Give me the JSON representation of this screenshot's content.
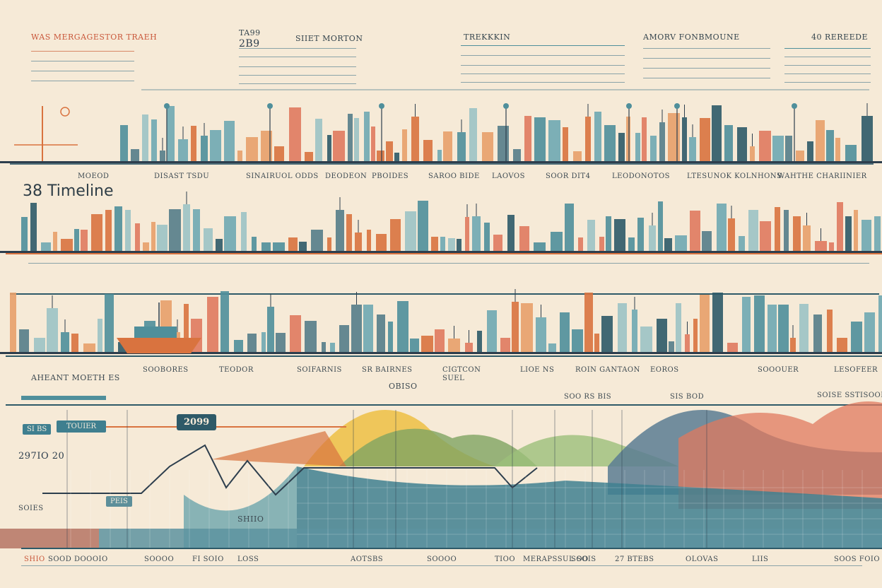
{
  "header": {
    "col1_title": "WAS MERGAGESTOR TRAEH",
    "col2_top": "TA99",
    "col2_big": "2B9",
    "col3_title": "SIIET MORTON",
    "col4_title": "TREKKKIN",
    "col5_title": "AMORV FONBMOUNE",
    "col6_title": "40 REREEDE"
  },
  "timeline_title": "38 Timeline",
  "row1_labels": [
    "MOEOD",
    "DISAST TSDU",
    "SINAIRUOL ODDS",
    "DEODEON",
    "PBOIDES",
    "SAROO BIDE",
    "LAOVOS",
    "SOOR DIT4",
    "LEODONOTOS",
    "LTESUNOK KOLNHONS",
    "WAHTHE CHARIINIER"
  ],
  "row3_labels": [
    "SOOBORES",
    "TEODOR",
    "SOIFARNIS",
    "SR BAIRNES",
    "CIGTCON SUEL",
    "LIOE NS",
    "ROIN GANTAON",
    "EOROS",
    "SOOOUER",
    "LESOFEER"
  ],
  "left_label": "AHEANT MOETH ES",
  "center_label": "OBISO",
  "chart_labels": {
    "box_small": "SI BS",
    "box_tourer": "TOUIER",
    "box_year": "2099",
    "left_value": "297IO 20",
    "right_top1": "SOO RS BIS",
    "right_top2": "SIS BOD",
    "right_top3": "SOISE SSTISOOE",
    "mid_label": "PEIS",
    "low_label": "SOIES",
    "inline_label": "SHIIO"
  },
  "footer_labels": [
    "SHIO",
    "SOOD DOOOIO",
    "SOOOO",
    "FI SOIO",
    "LOSS",
    "AOTSBS",
    "SOOOO",
    "TIOO",
    "MERAPSSUL SOIS",
    "SOO",
    "27 BTEBS",
    "OLOVAS",
    "LIIS",
    "SOOS FOIO"
  ],
  "colors": {
    "background": "#f6ead7",
    "teal": "#4f8f9b",
    "dark_teal": "#2e5a68",
    "orange": "#d9733f",
    "yellow": "#eec24d",
    "green": "#7fa461",
    "coral": "#e07a5f",
    "navy": "#2d3e4d"
  }
}
